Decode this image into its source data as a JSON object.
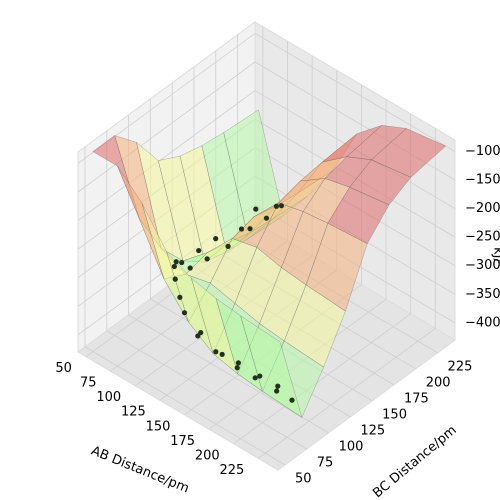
{
  "chart_data": {
    "type": "surface3d",
    "xlabel": "AB Distance/pm",
    "ylabel": "BC Distance/pm",
    "zlabel": "kJ/",
    "xlim": [
      42,
      245
    ],
    "ylim": [
      42,
      245
    ],
    "zlim": [
      -430,
      -80
    ],
    "xticks": [
      50,
      75,
      100,
      125,
      150,
      175,
      200,
      225
    ],
    "yticks": [
      50,
      75,
      100,
      125,
      150,
      175,
      200,
      225
    ],
    "zticks": [
      {
        "value": -100,
        "label": "−100"
      },
      {
        "value": -150,
        "label": "−150"
      },
      {
        "value": -200,
        "label": "−200"
      },
      {
        "value": -250,
        "label": "−250"
      },
      {
        "value": -300,
        "label": "−300"
      },
      {
        "value": -350,
        "label": "−350"
      },
      {
        "value": -400,
        "label": "−400"
      }
    ],
    "colormap": [
      "#4fd6a0",
      "#b6f7a6",
      "#f2f59a",
      "#f6b07c",
      "#de6a6a"
    ],
    "surface": {
      "x": [
        50,
        75,
        100,
        125,
        150,
        175,
        200,
        240
      ],
      "y": [
        50,
        75,
        100,
        125,
        150,
        175,
        200,
        240
      ],
      "z": [
        [
          -80,
          -80,
          -120,
          -180,
          -200,
          -210,
          -215,
          -220
        ],
        [
          -80,
          -200,
          -280,
          -330,
          -360,
          -370,
          -375,
          -380
        ],
        [
          -120,
          -280,
          -300,
          -290,
          -300,
          -310,
          -315,
          -320
        ],
        [
          -180,
          -330,
          -290,
          -240,
          -230,
          -240,
          -245,
          -250
        ],
        [
          -200,
          -360,
          -300,
          -230,
          -180,
          -170,
          -165,
          -160
        ],
        [
          -210,
          -370,
          -310,
          -240,
          -170,
          -140,
          -130,
          -120
        ],
        [
          -215,
          -375,
          -315,
          -245,
          -165,
          -130,
          -110,
          -100
        ],
        [
          -220,
          -380,
          -320,
          -250,
          -160,
          -120,
          -100,
          -90
        ]
      ]
    },
    "trajectory": {
      "color": "#23301f",
      "x": [
        230,
        220,
        210,
        200,
        190,
        180,
        170,
        160,
        150,
        140,
        130,
        120,
        110,
        100,
        92,
        85,
        80,
        78,
        76,
        74,
        72,
        74,
        77,
        75,
        72,
        74,
        77,
        75
      ],
      "y": [
        75,
        70,
        80,
        72,
        78,
        70,
        80,
        74,
        78,
        72,
        80,
        76,
        82,
        88,
        96,
        106,
        118,
        130,
        142,
        154,
        166,
        178,
        190,
        202,
        212,
        222,
        230,
        238
      ],
      "z": [
        -360,
        -340,
        -370,
        -345,
        -365,
        -340,
        -370,
        -350,
        -360,
        -330,
        -355,
        -320,
        -310,
        -295,
        -290,
        -300,
        -320,
        -345,
        -330,
        -360,
        -340,
        -365,
        -345,
        -360,
        -340,
        -365,
        -350,
        -360
      ]
    }
  }
}
